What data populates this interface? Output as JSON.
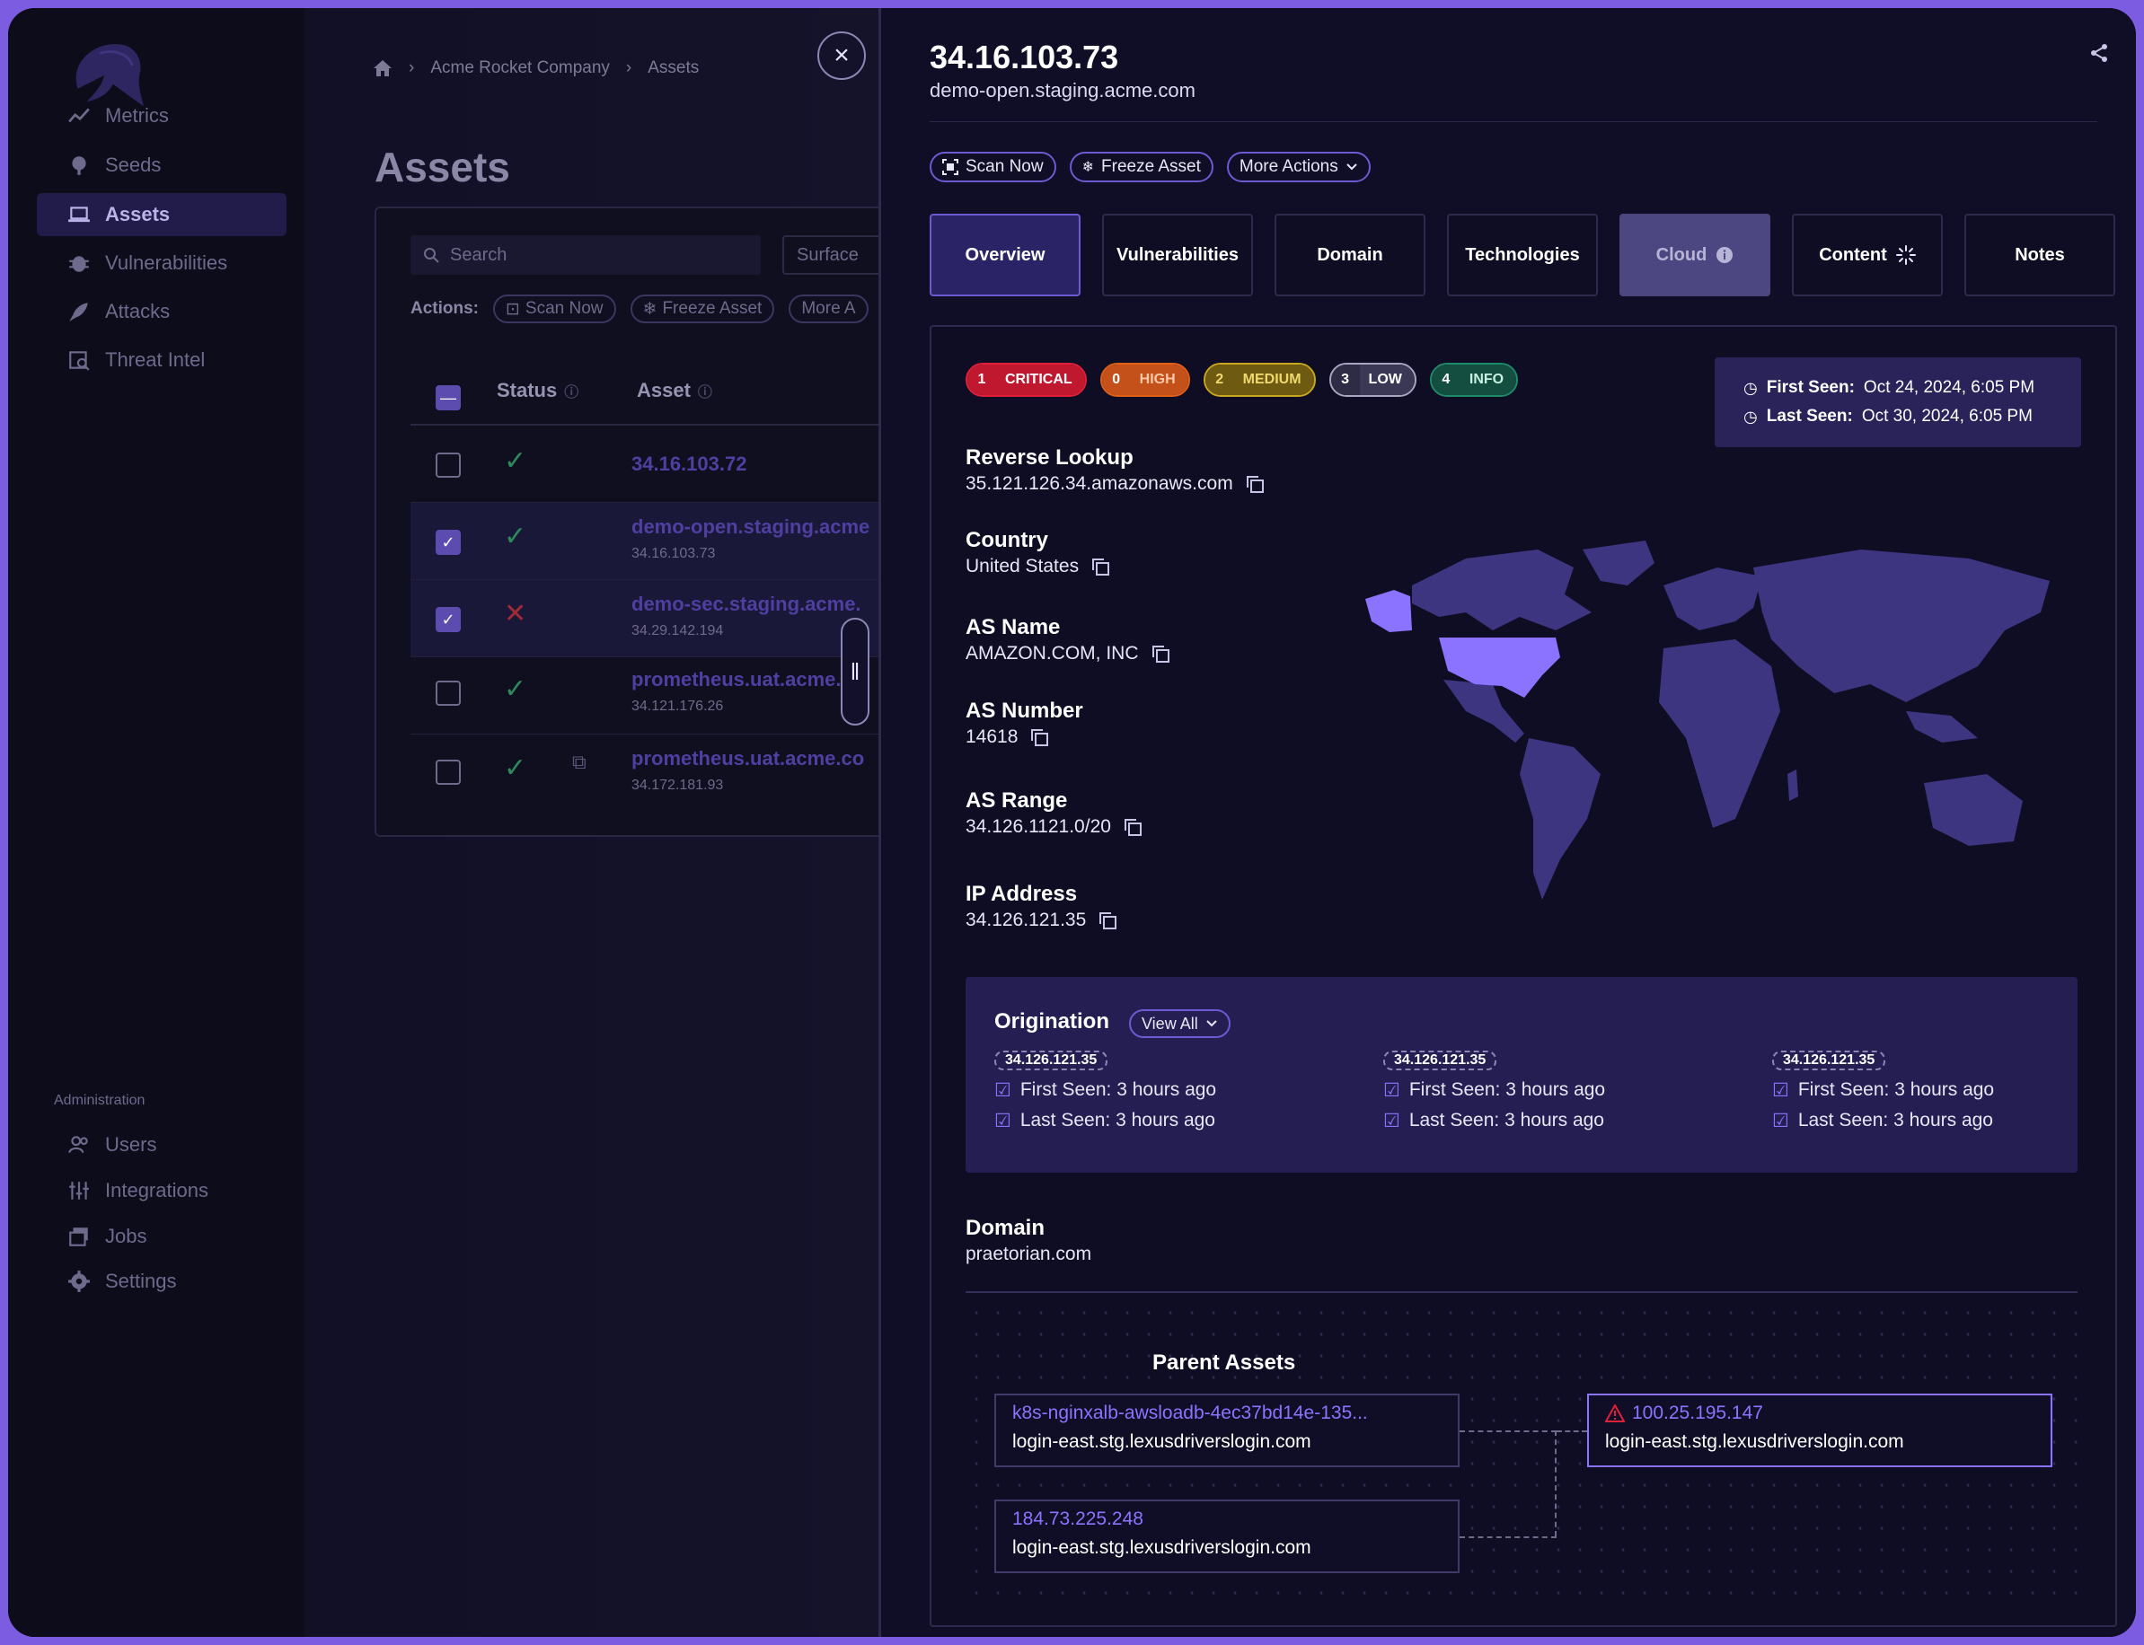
{
  "sidebar": {
    "nav": [
      {
        "label": "Metrics",
        "icon": "metrics-icon"
      },
      {
        "label": "Seeds",
        "icon": "seeds-icon"
      },
      {
        "label": "Assets",
        "icon": "laptop-icon"
      },
      {
        "label": "Vulnerabilities",
        "icon": "bug-icon"
      },
      {
        "label": "Attacks",
        "icon": "rocket-icon"
      },
      {
        "label": "Threat Intel",
        "icon": "threat-intel-icon"
      }
    ],
    "admin_label": "Administration",
    "admin": [
      {
        "label": "Users",
        "icon": "users-icon"
      },
      {
        "label": "Integrations",
        "icon": "sliders-icon"
      },
      {
        "label": "Jobs",
        "icon": "jobs-icon"
      },
      {
        "label": "Settings",
        "icon": "gear-icon"
      }
    ]
  },
  "breadcrumb": {
    "company": "Acme Rocket Company",
    "page": "Assets"
  },
  "assets_page": {
    "title": "Assets",
    "search_placeholder": "Search",
    "surface_label": "Surface",
    "actions_label": "Actions:",
    "actions": [
      "Scan Now",
      "Freeze Asset",
      "More A"
    ],
    "columns": {
      "status": "Status",
      "asset": "Asset"
    },
    "rows": [
      {
        "name": "34.16.103.72",
        "ip": "",
        "status": "ok",
        "selected": false
      },
      {
        "name": "demo-open.staging.acme",
        "ip": "34.16.103.73",
        "status": "ok",
        "selected": true
      },
      {
        "name": "demo-sec.staging.acme.",
        "ip": "34.29.142.194",
        "status": "bad",
        "selected": true
      },
      {
        "name": "prometheus.uat.acme.co",
        "ip": "34.121.176.26",
        "status": "ok",
        "selected": false
      },
      {
        "name": "prometheus.uat.acme.co",
        "ip": "34.172.181.93",
        "status": "ok",
        "selected": false
      }
    ]
  },
  "detail": {
    "ip": "34.16.103.73",
    "hostname": "demo-open.staging.acme.com",
    "actions": {
      "scan": "Scan Now",
      "freeze": "Freeze Asset",
      "more": "More Actions"
    },
    "tabs": [
      "Overview",
      "Vulnerabilities",
      "Domain",
      "Technologies",
      "Cloud",
      "Content",
      "Notes"
    ],
    "severity": [
      {
        "count": "1",
        "label": "CRITICAL",
        "color": "#e0203a"
      },
      {
        "count": "0",
        "label": "HIGH",
        "color": "#e06018"
      },
      {
        "count": "2",
        "label": "MEDIUM",
        "color": "#c9a820"
      },
      {
        "count": "3",
        "label": "LOW",
        "color": "#a8a6c0"
      },
      {
        "count": "4",
        "label": "INFO",
        "color": "#1f8a6a"
      }
    ],
    "first_seen_label": "First Seen:",
    "first_seen": "Oct 24, 2024, 6:05 PM",
    "last_seen_label": "Last Seen:",
    "last_seen": "Oct 30, 2024, 6:05 PM",
    "fields": [
      {
        "label": "Reverse Lookup",
        "value": "35.121.126.34.amazonaws.com"
      },
      {
        "label": "Country",
        "value": "United States"
      },
      {
        "label": "AS Name",
        "value": "AMAZON.COM, INC"
      },
      {
        "label": "AS Number",
        "value": "14618"
      },
      {
        "label": "AS Range",
        "value": "34.126.1121.0/20"
      },
      {
        "label": "IP Address",
        "value": "34.126.121.35"
      }
    ],
    "origination": {
      "title": "Origination",
      "view_all": "View All",
      "entries": [
        {
          "ip": "34.126.121.35",
          "first": "First Seen: 3 hours ago",
          "last": "Last Seen: 3 hours ago"
        },
        {
          "ip": "34.126.121.35",
          "first": "First Seen: 3 hours ago",
          "last": "Last Seen: 3 hours ago"
        },
        {
          "ip": "34.126.121.35",
          "first": "First Seen: 3 hours ago",
          "last": "Last Seen: 3 hours ago"
        }
      ]
    },
    "domain_label": "Domain",
    "domain_value": "praetorian.com",
    "parent_assets": {
      "title": "Parent Assets",
      "nodes": [
        {
          "name": "k8s-nginxalb-awsloadb-4ec37bd14e-135...",
          "host": "login-east.stg.lexusdriverslogin.com"
        },
        {
          "name": "184.73.225.248",
          "host": "login-east.stg.lexusdriverslogin.com"
        }
      ],
      "target": {
        "name": "100.25.195.147",
        "host": "login-east.stg.lexusdriverslogin.com"
      }
    }
  },
  "colors": {
    "accent": "#6b5ad0",
    "panel_bg": "#100e26",
    "frame": "#7c5ce0"
  }
}
